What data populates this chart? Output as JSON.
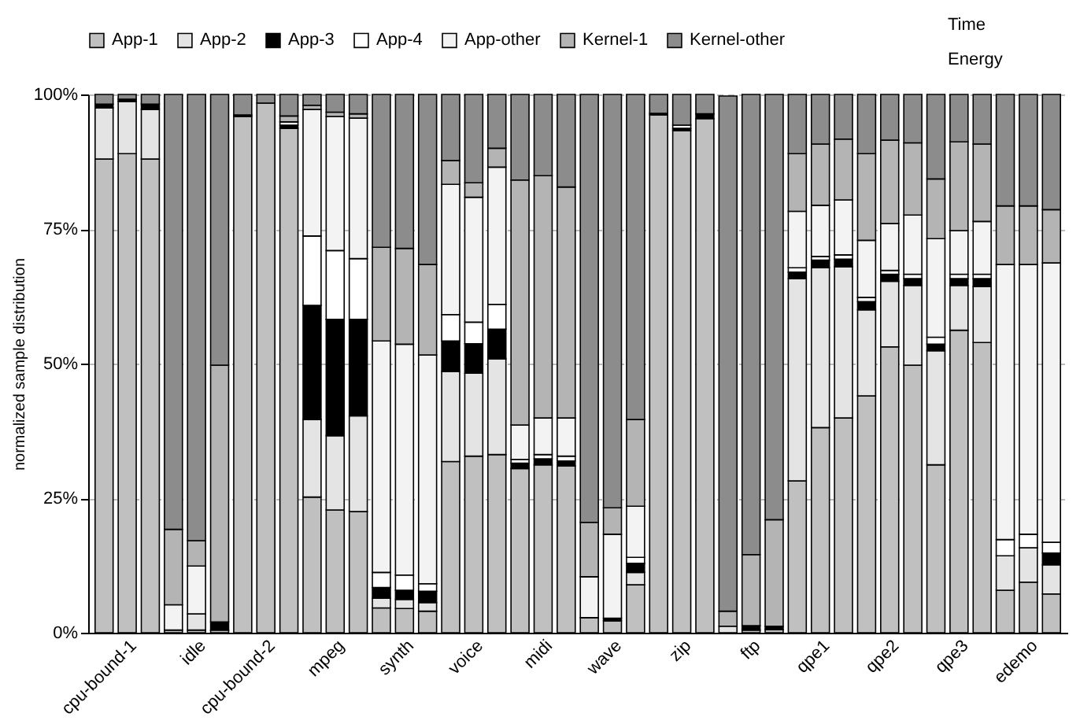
{
  "chart_data": {
    "type": "bar",
    "stacked": true,
    "ylabel": "normalized sample distribution",
    "annotations": [
      "Time",
      "Energy"
    ],
    "categories": [
      null,
      "cpu-bound-1",
      null,
      null,
      "idle",
      null,
      null,
      "cpu-bound-2",
      null,
      null,
      "mpeg",
      null,
      null,
      "synth",
      null,
      null,
      "voice",
      null,
      null,
      "midi",
      null,
      null,
      "wave",
      null,
      null,
      "zip",
      null,
      null,
      "ftp",
      null,
      null,
      "qpe1",
      null,
      null,
      "qpe2",
      null,
      null,
      "qpe3",
      null,
      null,
      "edemo",
      null
    ],
    "ylim": [
      0,
      100
    ],
    "yticks": [
      {
        "value": 0,
        "label": "0%"
      },
      {
        "value": 25,
        "label": "25%"
      },
      {
        "value": 50,
        "label": "50%"
      },
      {
        "value": 75,
        "label": "75%"
      },
      {
        "value": 100,
        "label": "100%"
      }
    ],
    "grid": "y",
    "legend": "top",
    "series": [
      {
        "name": "App-1",
        "color": "#c0c0c0",
        "values": [
          88,
          89,
          88,
          0.5,
          0.5,
          0.5,
          95.9,
          98.4,
          93.7,
          25.2,
          22.8,
          22.5,
          4.6,
          4.5,
          4,
          31.8,
          32.8,
          33.1,
          30.5,
          31.2,
          31,
          2.8,
          2.2,
          8.9,
          96.2,
          93.3,
          95.5,
          null,
          0.5,
          0.6,
          28.2,
          38.1,
          39.9,
          44,
          53.1,
          49.7,
          31.2,
          56.2,
          53.9,
          7.9,
          9.4,
          7.2
        ]
      },
      {
        "name": "App-2",
        "color": "#e4e4e4",
        "values": [
          9.5,
          9.7,
          9.2,
          0,
          3,
          0,
          0,
          0,
          0,
          14.4,
          13.8,
          17.8,
          1.8,
          1.7,
          1.6,
          16.7,
          15.4,
          17.8,
          0,
          0,
          0,
          0,
          0,
          2.3,
          0,
          0,
          0,
          1.2,
          0,
          0,
          37.6,
          29.7,
          28.1,
          16,
          12.2,
          14.8,
          21.2,
          8.3,
          10.4,
          6.4,
          6.4,
          5.4
        ]
      },
      {
        "name": "App-3",
        "color": "#000000",
        "values": [
          0.7,
          0.4,
          1,
          0,
          0,
          1.5,
          0.3,
          0,
          0.6,
          21.2,
          21.6,
          17.9,
          2,
          1.7,
          2.1,
          5.7,
          5.5,
          5.5,
          1,
          1.1,
          0.9,
          0,
          0.5,
          1.7,
          0.3,
          0.4,
          0.9,
          0,
          0.8,
          0.6,
          1.2,
          1.4,
          1.4,
          1.5,
          1.3,
          1.3,
          1.2,
          1.3,
          1.5,
          0,
          0,
          2.2
        ]
      },
      {
        "name": "App-4",
        "color": "#ffffff",
        "values": [
          0,
          0,
          0,
          0,
          0,
          0,
          0,
          0,
          0.6,
          12.9,
          12.8,
          11.3,
          2.8,
          2.8,
          1.4,
          4.9,
          4,
          4.6,
          0.7,
          0.8,
          0.9,
          0,
          0,
          1.1,
          0,
          0.6,
          0,
          0,
          0,
          0,
          0.8,
          0.7,
          0.8,
          0.8,
          0.7,
          0.8,
          1.3,
          0.8,
          0.8,
          3,
          2.5,
          2
        ]
      },
      {
        "name": "App-other",
        "color": "#f3f3f3",
        "values": [
          0,
          0,
          0,
          4.7,
          8.9,
          0,
          0,
          0,
          0,
          23.5,
          24.9,
          26.1,
          43,
          42.9,
          42.5,
          24.2,
          23.2,
          25.5,
          6.4,
          6.8,
          7.1,
          7.6,
          15.6,
          9.5,
          0,
          0,
          0,
          0,
          0,
          0,
          10.5,
          9.5,
          10.2,
          10.6,
          8.7,
          11,
          18.3,
          8.1,
          9.8,
          51.1,
          50.1,
          51.9
        ]
      },
      {
        "name": "Kernel-1",
        "color": "#b4b4b4",
        "values": [
          0,
          0,
          0,
          14,
          4.7,
          47.7,
          0,
          0,
          1.1,
          0.8,
          0.8,
          0.8,
          17.4,
          17.8,
          16.8,
          4.4,
          2.7,
          3.5,
          45.5,
          45,
          42.9,
          10.1,
          4.9,
          16.1,
          0,
          0,
          0,
          2.8,
          13.2,
          19.8,
          10.7,
          11.4,
          11.3,
          16.1,
          15.5,
          13.4,
          11.1,
          16.5,
          14.4,
          10.9,
          10.9,
          9.9
        ]
      },
      {
        "name": "Kernel-other",
        "color": "#8c8c8c",
        "values": [
          1.8,
          0.9,
          1.8,
          80.8,
          82.9,
          50.3,
          3.8,
          1.6,
          4,
          2,
          3.3,
          3.6,
          28.4,
          28.6,
          31.6,
          12.3,
          16.4,
          10,
          15.9,
          15.1,
          17.2,
          79.5,
          76.8,
          60.4,
          3.5,
          5.7,
          3.6,
          95.7,
          85.5,
          79,
          11,
          9.2,
          8.3,
          11,
          8.5,
          9,
          15.7,
          8.8,
          9.2,
          20.7,
          20.7,
          21.4
        ]
      }
    ]
  }
}
